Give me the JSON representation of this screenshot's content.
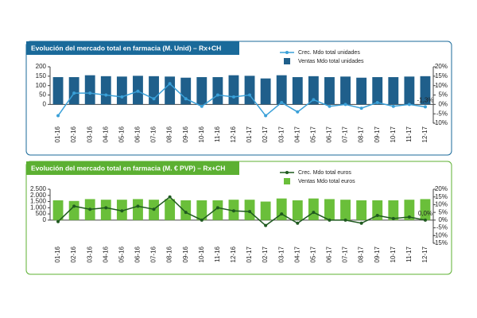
{
  "chart_data": [
    {
      "type": "combo",
      "title": "Evolución del mercado total en farmacia (M. Unid) – Rx+CH",
      "frame_color": "#1a6a9a",
      "categories": [
        "01-16",
        "02-16",
        "03-16",
        "04-16",
        "05-16",
        "06-16",
        "07-16",
        "08-16",
        "09-16",
        "10-16",
        "11-16",
        "12-16",
        "01-17",
        "02-17",
        "03-17",
        "04-17",
        "05-17",
        "06-17",
        "07-17",
        "08-17",
        "09-17",
        "10-17",
        "11-17",
        "12-17"
      ],
      "series": [
        {
          "name": "Crec. Mdo total unidades",
          "type": "line",
          "axis": "y2",
          "color": "#3aa0d8",
          "values": [
            -6,
            6,
            6,
            5,
            4,
            7,
            3,
            11,
            3,
            -1,
            5,
            4,
            5,
            -6,
            1,
            -4,
            2.5,
            -1,
            0,
            -2,
            1,
            -1,
            0,
            -1.3
          ],
          "value_labels": [
            null,
            null,
            null,
            null,
            null,
            null,
            null,
            null,
            null,
            null,
            null,
            null,
            null,
            null,
            null,
            null,
            null,
            null,
            null,
            null,
            null,
            null,
            null,
            "-1,3%"
          ]
        },
        {
          "name": "Ventas Mdo total unidades",
          "type": "bar",
          "color": "#1f5f8b",
          "values": [
            145,
            145,
            155,
            150,
            148,
            152,
            150,
            148,
            142,
            145,
            145,
            155,
            152,
            138,
            155,
            145,
            150,
            145,
            148,
            142,
            145,
            145,
            148,
            150
          ]
        }
      ],
      "ylim": [
        -100,
        200
      ],
      "yticks": [
        0,
        50,
        100,
        150,
        200
      ],
      "y2lim": [
        -10,
        20
      ],
      "y2ticks": [
        {
          "value": 20,
          "label": "20%"
        },
        {
          "value": 15,
          "label": "15%"
        },
        {
          "value": 10,
          "label": "10%"
        },
        {
          "value": 5,
          "label": "5%"
        },
        {
          "value": 0,
          "label": "0%"
        },
        {
          "value": -5,
          "label": "-5%"
        },
        {
          "value": -10,
          "label": "-10%"
        }
      ]
    },
    {
      "type": "combo",
      "title": "Evolución del mercado total en farmacia (M. € PVP) – Rx+CH",
      "frame_color": "#5cb032",
      "categories": [
        "01-16",
        "02-16",
        "03-16",
        "04-16",
        "05-16",
        "06-16",
        "07-16",
        "08-16",
        "09-16",
        "10-16",
        "11-16",
        "12-16",
        "01-17",
        "02-17",
        "03-17",
        "04-17",
        "05-17",
        "06-17",
        "07-17",
        "08-17",
        "09-17",
        "10-17",
        "11-17",
        "12-17"
      ],
      "series": [
        {
          "name": "Crec. Mdo total euros",
          "type": "line",
          "axis": "y2",
          "color": "#1f5a1f",
          "values": [
            -1,
            9,
            7,
            8,
            6,
            9,
            7,
            15,
            5,
            0,
            8,
            6,
            5.5,
            -3.5,
            4,
            -2,
            5,
            0,
            0,
            -2,
            3,
            1,
            2,
            0
          ],
          "value_labels": [
            null,
            null,
            null,
            null,
            null,
            null,
            null,
            null,
            null,
            null,
            null,
            null,
            null,
            null,
            null,
            null,
            null,
            null,
            null,
            null,
            null,
            null,
            null,
            "0,0%"
          ]
        },
        {
          "name": "Ventas Mdo total euros",
          "type": "bar",
          "color": "#6abf3a",
          "values": [
            1600,
            1550,
            1700,
            1650,
            1650,
            1700,
            1650,
            1700,
            1600,
            1600,
            1600,
            1650,
            1650,
            1500,
            1750,
            1600,
            1750,
            1700,
            1650,
            1600,
            1600,
            1600,
            1650,
            1700
          ]
        }
      ],
      "ylim": [
        -1875,
        2500
      ],
      "yticks": [
        0,
        500,
        {
          "value": 1000,
          "label": "1.000"
        },
        {
          "value": 1500,
          "label": "1.500"
        },
        {
          "value": 2000,
          "label": "2.000"
        },
        {
          "value": 2500,
          "label": "2.500"
        }
      ],
      "y2lim": [
        -15,
        20
      ],
      "y2ticks": [
        {
          "value": 20,
          "label": "20%"
        },
        {
          "value": 15,
          "label": "15%"
        },
        {
          "value": 10,
          "label": "10%"
        },
        {
          "value": 5,
          "label": "5%"
        },
        {
          "value": 0,
          "label": "0%"
        },
        {
          "value": -5,
          "label": "-5%"
        },
        {
          "value": -10,
          "label": "-10%"
        },
        {
          "value": -15,
          "label": "-15%"
        }
      ]
    }
  ]
}
